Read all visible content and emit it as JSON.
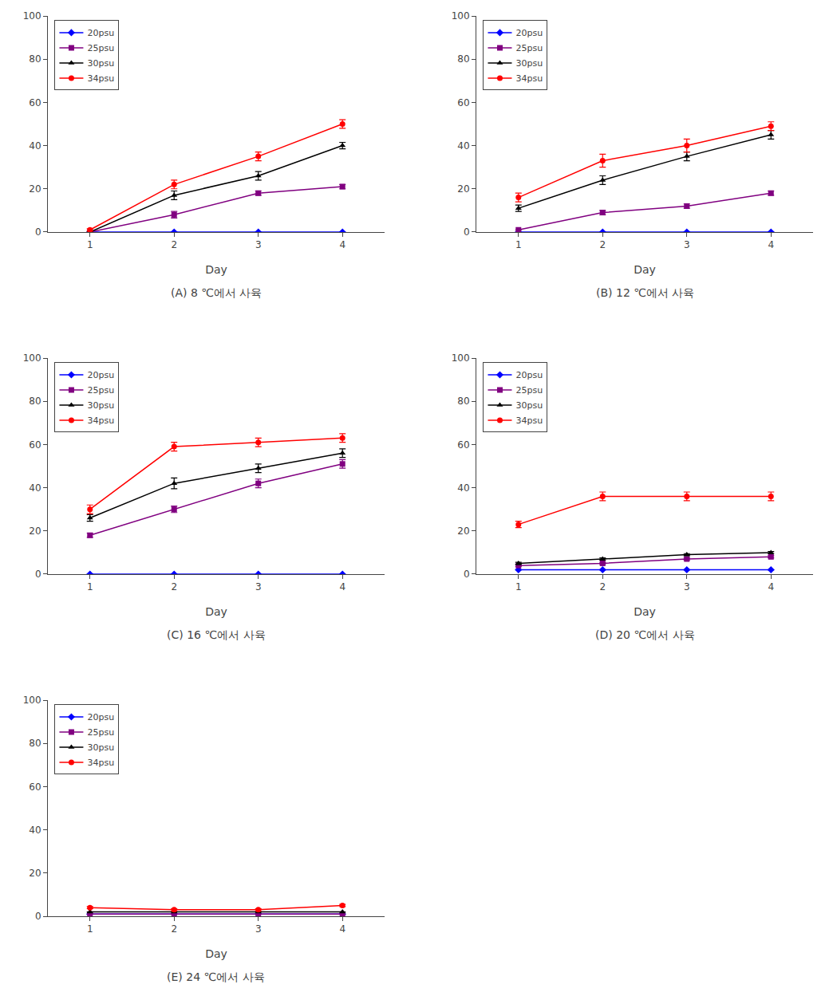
{
  "chart_data": [
    {
      "type": "line",
      "title": "(A) 8 ℃에서 사육",
      "xlabel": "Day",
      "x": [
        1,
        2,
        3,
        4
      ],
      "xlim": [
        0.5,
        4.5
      ],
      "xticks": [
        1,
        2,
        3,
        4
      ],
      "ylim": [
        0,
        100
      ],
      "yticks": [
        0,
        20,
        40,
        60,
        80,
        100
      ],
      "grid": false,
      "legend": "upper left",
      "series": [
        {
          "name": "20psu",
          "color": "#0000FF",
          "marker": "diamond",
          "values": [
            0,
            0,
            0,
            0
          ],
          "errors": [
            0,
            0,
            0,
            0
          ]
        },
        {
          "name": "25psu",
          "color": "#800080",
          "marker": "square",
          "values": [
            0,
            8,
            18,
            21
          ],
          "errors": [
            0,
            1.5,
            1,
            1
          ]
        },
        {
          "name": "30psu",
          "color": "#000000",
          "marker": "triangle",
          "values": [
            0,
            17,
            26,
            40
          ],
          "errors": [
            0,
            2,
            2,
            1.5
          ]
        },
        {
          "name": "34psu",
          "color": "#FF0000",
          "marker": "circle",
          "values": [
            1,
            22,
            35,
            50
          ],
          "errors": [
            0.5,
            2,
            2,
            2
          ]
        }
      ]
    },
    {
      "type": "line",
      "title": "(B) 12 ℃에서 사육",
      "xlabel": "Day",
      "x": [
        1,
        2,
        3,
        4
      ],
      "xlim": [
        0.5,
        4.5
      ],
      "xticks": [
        1,
        2,
        3,
        4
      ],
      "ylim": [
        0,
        100
      ],
      "yticks": [
        0,
        20,
        40,
        60,
        80,
        100
      ],
      "grid": false,
      "legend": "upper left",
      "series": [
        {
          "name": "20psu",
          "color": "#0000FF",
          "marker": "diamond",
          "values": [
            0,
            0,
            0,
            0
          ],
          "errors": [
            0,
            0,
            0,
            0
          ]
        },
        {
          "name": "25psu",
          "color": "#800080",
          "marker": "square",
          "values": [
            1,
            9,
            12,
            18
          ],
          "errors": [
            0,
            1,
            1,
            1
          ]
        },
        {
          "name": "30psu",
          "color": "#000000",
          "marker": "triangle",
          "values": [
            11,
            24,
            35,
            45
          ],
          "errors": [
            1.5,
            2,
            2,
            2
          ]
        },
        {
          "name": "34psu",
          "color": "#FF0000",
          "marker": "circle",
          "values": [
            16,
            33,
            40,
            49
          ],
          "errors": [
            2,
            3,
            3,
            2
          ]
        }
      ]
    },
    {
      "type": "line",
      "title": "(C) 16 ℃에서 사육",
      "xlabel": "Day",
      "x": [
        1,
        2,
        3,
        4
      ],
      "xlim": [
        0.5,
        4.5
      ],
      "xticks": [
        1,
        2,
        3,
        4
      ],
      "ylim": [
        0,
        100
      ],
      "yticks": [
        0,
        20,
        40,
        60,
        80,
        100
      ],
      "grid": false,
      "legend": "upper left",
      "series": [
        {
          "name": "20psu",
          "color": "#0000FF",
          "marker": "diamond",
          "values": [
            0,
            0,
            0,
            0
          ],
          "errors": [
            0,
            0,
            0,
            0
          ]
        },
        {
          "name": "25psu",
          "color": "#800080",
          "marker": "square",
          "values": [
            18,
            30,
            42,
            51
          ],
          "errors": [
            1,
            1.5,
            2,
            2
          ]
        },
        {
          "name": "30psu",
          "color": "#000000",
          "marker": "triangle",
          "values": [
            26,
            42,
            49,
            56
          ],
          "errors": [
            1.5,
            2.5,
            2,
            2
          ]
        },
        {
          "name": "34psu",
          "color": "#FF0000",
          "marker": "circle",
          "values": [
            30,
            59,
            61,
            63
          ],
          "errors": [
            2,
            2,
            2,
            2
          ]
        }
      ]
    },
    {
      "type": "line",
      "title": "(D) 20 ℃에서 사육",
      "xlabel": "Day",
      "x": [
        1,
        2,
        3,
        4
      ],
      "xlim": [
        0.5,
        4.5
      ],
      "xticks": [
        1,
        2,
        3,
        4
      ],
      "ylim": [
        0,
        100
      ],
      "yticks": [
        0,
        20,
        40,
        60,
        80,
        100
      ],
      "grid": false,
      "legend": "upper left",
      "series": [
        {
          "name": "20psu",
          "color": "#0000FF",
          "marker": "diamond",
          "values": [
            2,
            2,
            2,
            2
          ],
          "errors": [
            0,
            0,
            0,
            0
          ]
        },
        {
          "name": "25psu",
          "color": "#800080",
          "marker": "square",
          "values": [
            4,
            5,
            7,
            8
          ],
          "errors": [
            0.5,
            0.5,
            0.5,
            0.5
          ]
        },
        {
          "name": "30psu",
          "color": "#000000",
          "marker": "triangle",
          "values": [
            5,
            7,
            9,
            10
          ],
          "errors": [
            0.5,
            0.5,
            0.5,
            0.5
          ]
        },
        {
          "name": "34psu",
          "color": "#FF0000",
          "marker": "circle",
          "values": [
            23,
            36,
            36,
            36
          ],
          "errors": [
            1.5,
            2,
            2,
            2
          ]
        }
      ]
    },
    {
      "type": "line",
      "title": "(E) 24 ℃에서 사육",
      "xlabel": "Day",
      "x": [
        1,
        2,
        3,
        4
      ],
      "xlim": [
        0.5,
        4.5
      ],
      "xticks": [
        1,
        2,
        3,
        4
      ],
      "ylim": [
        0,
        100
      ],
      "yticks": [
        0,
        20,
        40,
        60,
        80,
        100
      ],
      "grid": false,
      "legend": "upper left",
      "series": [
        {
          "name": "20psu",
          "color": "#0000FF",
          "marker": "diamond",
          "values": [
            1,
            1,
            1,
            1
          ],
          "errors": [
            0,
            0,
            0,
            0
          ]
        },
        {
          "name": "25psu",
          "color": "#800080",
          "marker": "square",
          "values": [
            1,
            1,
            1,
            1
          ],
          "errors": [
            0,
            0,
            0,
            0
          ]
        },
        {
          "name": "30psu",
          "color": "#000000",
          "marker": "triangle",
          "values": [
            2,
            2,
            2,
            2
          ],
          "errors": [
            0,
            0,
            0,
            0
          ]
        },
        {
          "name": "34psu",
          "color": "#FF0000",
          "marker": "circle",
          "values": [
            4,
            3,
            3,
            5
          ],
          "errors": [
            0.5,
            0.5,
            0.5,
            0.5
          ]
        }
      ]
    }
  ]
}
